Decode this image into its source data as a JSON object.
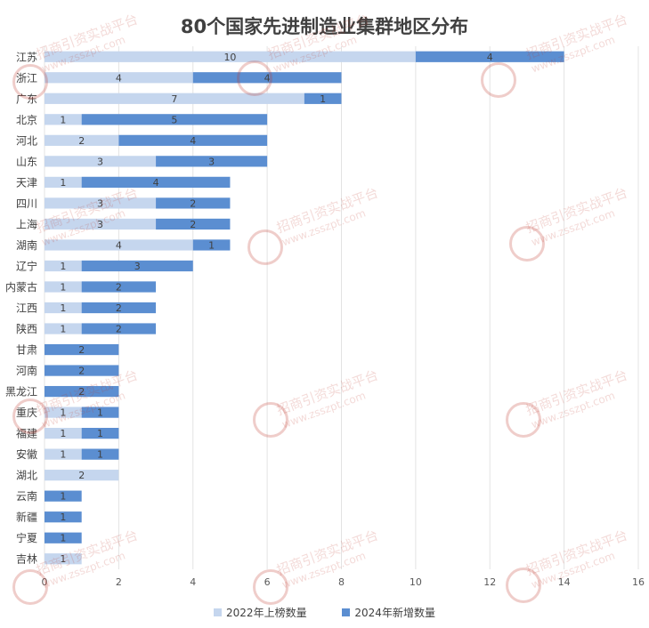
{
  "chart_data": {
    "type": "bar",
    "orientation": "horizontal",
    "stacked": true,
    "title": "80个国家先进制造业集群地区分布",
    "categories": [
      "江苏",
      "浙江",
      "广东",
      "北京",
      "河北",
      "山东",
      "天津",
      "四川",
      "上海",
      "湖南",
      "辽宁",
      "内蒙古",
      "江西",
      "陕西",
      "甘肃",
      "河南",
      "黑龙江",
      "重庆",
      "福建",
      "安徽",
      "湖北",
      "云南",
      "新疆",
      "宁夏",
      "吉林"
    ],
    "series": [
      {
        "name": "2022年上榜数量",
        "color": "#c5d6ee",
        "values": [
          10,
          4,
          7,
          1,
          2,
          3,
          1,
          3,
          3,
          4,
          1,
          1,
          1,
          1,
          0,
          0,
          0,
          1,
          1,
          1,
          2,
          0,
          0,
          0,
          1
        ]
      },
      {
        "name": "2024年新增数量",
        "color": "#5b8ed1",
        "values": [
          4,
          4,
          1,
          5,
          4,
          3,
          4,
          2,
          2,
          1,
          3,
          2,
          2,
          2,
          2,
          2,
          2,
          1,
          1,
          1,
          0,
          1,
          1,
          1,
          0
        ]
      }
    ],
    "xlim": [
      0,
      16
    ],
    "xticks": [
      "0",
      "2",
      "4",
      "6",
      "8",
      "10",
      "12",
      "14",
      "16"
    ],
    "grid": true,
    "legend_position": "bottom"
  },
  "watermark": {
    "text": "招商引资实战平台",
    "url": "www.zsszpt.com"
  }
}
